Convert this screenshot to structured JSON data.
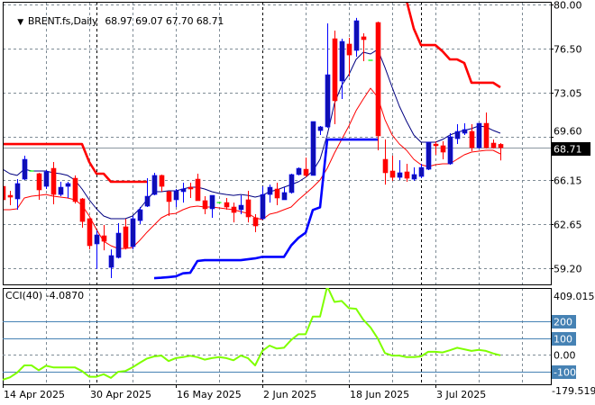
{
  "header": {
    "dropdown_icon": "triangle-down-icon",
    "symbol_label": "BRENT.fs,Daily",
    "ohlc": "68.97 69.07 67.70 68.71"
  },
  "colors": {
    "bull": "#1010b0",
    "bull_wick": "#0000ff",
    "bear": "#ff0000",
    "doji": "#00ff00",
    "upper_step": "#ff0000",
    "lower_step": "#0000ff",
    "ma_upper": "#000080",
    "ma_lower": "#ff0000",
    "cci": "#7fff00",
    "level": "#4682b4",
    "grid": "#7f8c96"
  },
  "chart_data": [
    {
      "type": "candlestick",
      "title": "BRENT.fs,Daily",
      "ylim": [
        59.2,
        80.0
      ],
      "y_ticks": [
        "80.00",
        "76.50",
        "73.05",
        "69.60",
        "66.15",
        "62.65",
        "59.20"
      ],
      "current_price": "68.71",
      "x_labels": [
        {
          "label": "14 Apr 2025",
          "index": 0
        },
        {
          "label": "30 Apr 2025",
          "index": 12
        },
        {
          "label": "16 May 2025",
          "index": 24
        },
        {
          "label": "2 Jun 2025",
          "index": 36
        },
        {
          "label": "18 Jun 2025",
          "index": 48
        },
        {
          "label": "3 Jul 2025",
          "index": 60
        }
      ],
      "period_separators": [
        13,
        36,
        58
      ],
      "candles_ohlc": [
        [
          65.66,
          65.8,
          63.89,
          64.6
        ],
        [
          64.95,
          65.31,
          64.17,
          64.81
        ],
        [
          64.67,
          66.23,
          63.82,
          65.88
        ],
        [
          66.23,
          68.08,
          66.16,
          67.79
        ],
        [
          66.87,
          66.87,
          66.87,
          66.87
        ],
        [
          66.66,
          66.73,
          64.6,
          65.38
        ],
        [
          65.66,
          66.94,
          65.45,
          66.8
        ],
        [
          67.08,
          67.58,
          64.24,
          65.02
        ],
        [
          65.02,
          66.02,
          64.88,
          65.59
        ],
        [
          65.66,
          66.02,
          64.74,
          65.88
        ],
        [
          66.3,
          66.52,
          64.31,
          64.46
        ],
        [
          64.67,
          64.74,
          62.4,
          62.89
        ],
        [
          63.11,
          63.11,
          60.69,
          60.98
        ],
        [
          61.12,
          62.19,
          59.13,
          61.83
        ],
        [
          61.76,
          62.61,
          60.62,
          61.33
        ],
        [
          59.27,
          60.69,
          58.42,
          60.2
        ],
        [
          60.05,
          62.75,
          59.98,
          61.97
        ],
        [
          62.47,
          63.11,
          60.69,
          60.83
        ],
        [
          60.91,
          63.32,
          60.69,
          63.11
        ],
        [
          62.96,
          64.03,
          62.68,
          63.82
        ],
        [
          64.1,
          66.3,
          64.03,
          64.88
        ],
        [
          65.02,
          66.73,
          64.95,
          66.52
        ],
        [
          66.52,
          66.59,
          65.24,
          65.66
        ],
        [
          65.24,
          65.31,
          63.32,
          64.46
        ],
        [
          64.6,
          65.45,
          64.03,
          65.31
        ],
        [
          65.24,
          65.95,
          64.38,
          65.45
        ],
        [
          65.59,
          65.95,
          64.74,
          65.45
        ],
        [
          66.23,
          66.66,
          64.53,
          64.53
        ],
        [
          64.53,
          64.88,
          63.46,
          63.89
        ],
        [
          63.89,
          64.95,
          63.18,
          64.95
        ],
        [
          64.38,
          64.38,
          64.38,
          64.38
        ],
        [
          64.38,
          64.74,
          63.82,
          64.03
        ],
        [
          64.03,
          64.38,
          62.82,
          63.6
        ],
        [
          63.82,
          64.95,
          63.46,
          64.17
        ],
        [
          64.6,
          65.31,
          62.82,
          63.25
        ],
        [
          63.18,
          63.46,
          62.04,
          62.54
        ],
        [
          63.11,
          65.66,
          63.04,
          65.02
        ],
        [
          65.02,
          65.8,
          64.38,
          65.59
        ],
        [
          65.45,
          65.95,
          64.17,
          64.74
        ],
        [
          64.6,
          65.59,
          64.6,
          65.17
        ],
        [
          65.17,
          66.66,
          65.09,
          66.59
        ],
        [
          66.59,
          67.15,
          66.52,
          67.08
        ],
        [
          67.01,
          67.93,
          66.37,
          66.52
        ],
        [
          66.52,
          70.77,
          66.52,
          70.77
        ],
        [
          70.06,
          70.42,
          69.71,
          70.35
        ],
        [
          70.35,
          78.51,
          70.28,
          74.46
        ],
        [
          77.3,
          77.94,
          70.56,
          72.41
        ],
        [
          73.97,
          77.3,
          72.55,
          77.09
        ],
        [
          76.88,
          77.37,
          74.32,
          76.02
        ],
        [
          76.38,
          78.94,
          75.88,
          78.72
        ],
        [
          77.45,
          77.73,
          75.53,
          77.23
        ],
        [
          75.6,
          75.6,
          75.6,
          75.6
        ],
        [
          78.58,
          78.65,
          68.5,
          69.64
        ],
        [
          67.79,
          69.35,
          65.8,
          66.73
        ],
        [
          66.87,
          68.08,
          66.09,
          66.37
        ],
        [
          66.37,
          67.72,
          66.16,
          66.73
        ],
        [
          66.8,
          67.44,
          66.02,
          66.3
        ],
        [
          66.23,
          67.15,
          66.09,
          66.59
        ],
        [
          66.44,
          67.44,
          66.3,
          67.15
        ],
        [
          67.01,
          69.14,
          66.94,
          69.14
        ],
        [
          68.99,
          69.21,
          68.15,
          68.86
        ],
        [
          68.86,
          69.21,
          67.79,
          68.36
        ],
        [
          67.44,
          69.85,
          67.37,
          69.57
        ],
        [
          69.42,
          70.56,
          69.0,
          69.99
        ],
        [
          69.85,
          70.63,
          69.71,
          70.14
        ],
        [
          69.99,
          70.56,
          68.43,
          68.71
        ],
        [
          68.71,
          70.63,
          68.64,
          70.63
        ],
        [
          70.63,
          71.48,
          68.64,
          68.71
        ],
        [
          69.07,
          69.35,
          68.64,
          68.71
        ],
        [
          68.97,
          69.07,
          67.7,
          68.71
        ]
      ],
      "overlays": {
        "upper_step": [
          68.99,
          68.99,
          68.99,
          68.99,
          68.99,
          68.99,
          68.99,
          68.99,
          68.99,
          68.99,
          68.99,
          68.99,
          67.58,
          66.66,
          66.66,
          66.02,
          66.02,
          66.02,
          66.02,
          66.02,
          66.02,
          null,
          null,
          null,
          null,
          null,
          null,
          null,
          null,
          null,
          null,
          null,
          null,
          null,
          null,
          null,
          null,
          null,
          null,
          null,
          null,
          null,
          null,
          null,
          null,
          null,
          null,
          null,
          null,
          null,
          null,
          null,
          null,
          null,
          null,
          null,
          80.3,
          78.1,
          76.8,
          76.8,
          76.8,
          76.3,
          75.67,
          75.67,
          75.39,
          73.83,
          73.83,
          73.83,
          73.83,
          73.47
        ],
        "lower_step": [
          null,
          null,
          null,
          null,
          null,
          null,
          null,
          null,
          null,
          null,
          null,
          null,
          null,
          null,
          null,
          null,
          null,
          null,
          null,
          null,
          null,
          58.42,
          58.45,
          58.5,
          58.56,
          58.8,
          58.84,
          59.77,
          59.84,
          59.84,
          59.84,
          59.84,
          59.84,
          59.84,
          59.91,
          59.98,
          60.1,
          60.1,
          60.1,
          60.1,
          61.0,
          61.6,
          62.0,
          63.8,
          64.0,
          69.35,
          69.35,
          69.35,
          69.35,
          69.35,
          69.35,
          69.35,
          69.35,
          null,
          null,
          null,
          null,
          null,
          null,
          null,
          null,
          null,
          null,
          null,
          null,
          null,
          null,
          null,
          null,
          null
        ],
        "ma_upper": [
          67.01,
          66.66,
          66.52,
          67.01,
          66.87,
          66.87,
          66.87,
          66.73,
          66.66,
          66.52,
          66.16,
          65.45,
          64.6,
          63.89,
          63.32,
          63.11,
          63.11,
          63.11,
          63.32,
          63.89,
          64.6,
          65.24,
          65.24,
          65.31,
          65.31,
          65.45,
          65.59,
          65.59,
          65.45,
          65.24,
          65.1,
          65.02,
          64.95,
          65.02,
          64.95,
          64.81,
          64.95,
          65.24,
          65.38,
          65.59,
          65.8,
          66.02,
          66.37,
          66.87,
          67.79,
          69.71,
          72.2,
          73.62,
          74.47,
          75.67,
          76.24,
          76.1,
          76.46,
          75.04,
          73.47,
          71.98,
          70.78,
          69.71,
          69.14,
          69.14,
          69.14,
          69.36,
          69.71,
          69.92,
          70.07,
          70.21,
          70.42,
          70.35,
          70.07,
          69.85
        ],
        "ma_lower": [
          63.82,
          63.82,
          63.89,
          64.74,
          64.88,
          64.95,
          65.02,
          64.88,
          64.81,
          64.74,
          64.6,
          64.17,
          63.32,
          62.26,
          61.33,
          60.98,
          60.76,
          60.76,
          60.84,
          61.4,
          62.04,
          62.61,
          63.18,
          63.46,
          63.53,
          63.82,
          64.03,
          64.1,
          64.03,
          64.03,
          63.96,
          63.89,
          63.82,
          63.67,
          63.53,
          63.18,
          63.04,
          63.46,
          63.6,
          63.82,
          64.03,
          64.6,
          65.09,
          65.59,
          66.16,
          67.08,
          68.29,
          69.36,
          70.42,
          71.63,
          72.55,
          73.4,
          72.69,
          70.92,
          69.71,
          69.0,
          68.5,
          67.79,
          67.37,
          67.22,
          67.37,
          67.44,
          67.44,
          67.79,
          68.15,
          68.36,
          68.43,
          68.5,
          68.5,
          68.22
        ]
      }
    },
    {
      "type": "line",
      "title": "CCI(40) -4.0870",
      "ylim": [
        -179.519,
        409.015
      ],
      "axis_labels": {
        "max": "409.015",
        "min": "-179.519",
        "zero": "0.00"
      },
      "levels": [
        {
          "value": 200,
          "label": "200"
        },
        {
          "value": 100,
          "label": "100"
        },
        {
          "value": -100,
          "label": "-100"
        }
      ],
      "values": [
        -151,
        -137,
        -108,
        -65,
        -65,
        -94,
        -67,
        -77,
        -77,
        -77,
        -77,
        -99,
        -133,
        -133,
        -118,
        -140,
        -103,
        -99,
        -77,
        -49,
        -24,
        -11,
        -6,
        -39,
        -21,
        -15,
        -7,
        -15,
        -30,
        -21,
        -15,
        -21,
        -34,
        -6,
        -21,
        -65,
        22,
        54,
        36,
        41,
        88,
        122,
        122,
        228,
        228,
        409,
        316,
        322,
        279,
        275,
        209,
        163,
        97,
        9,
        -6,
        -6,
        -15,
        -15,
        -11,
        17,
        17,
        13,
        26,
        41,
        32,
        22,
        28,
        22,
        7,
        -4.087
      ]
    }
  ]
}
